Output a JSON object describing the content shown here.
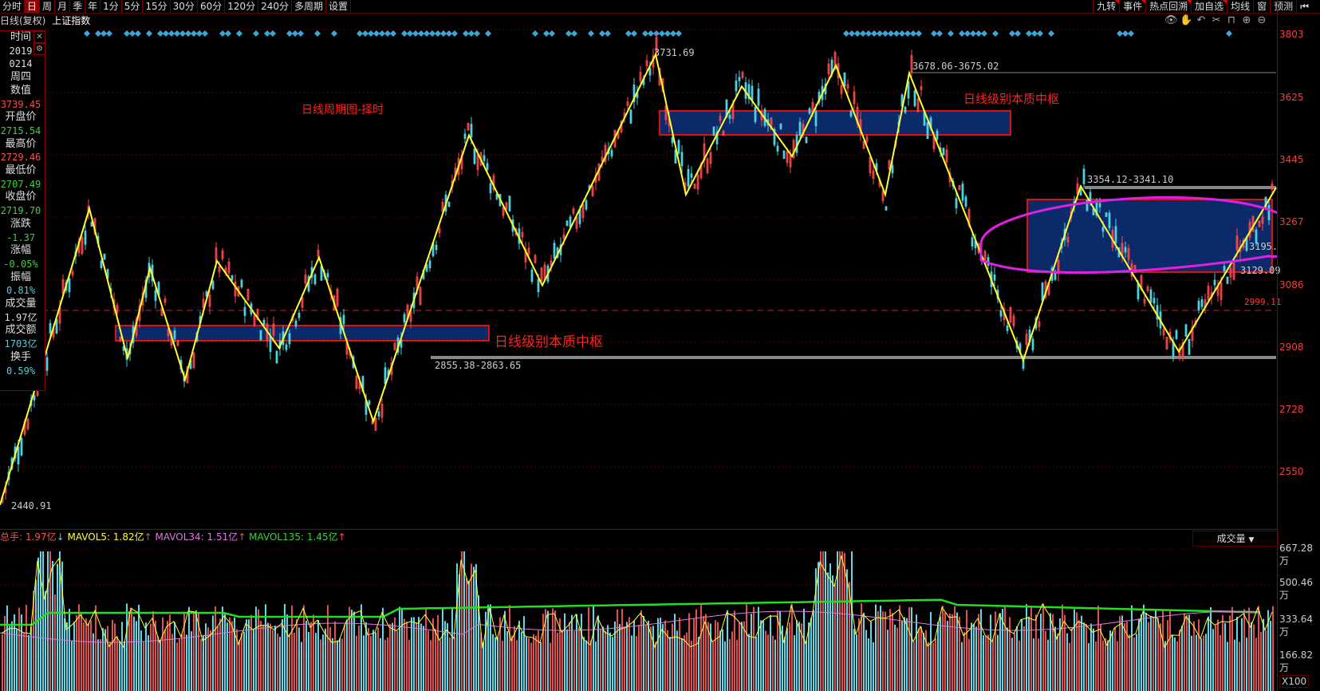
{
  "toolbar": {
    "period_tabs": [
      "分时",
      "日",
      "周",
      "月",
      "季",
      "年",
      "1分",
      "5分",
      "15分",
      "30分",
      "60分",
      "120分",
      "240分",
      "多周期",
      "设置"
    ],
    "active_tab": "日",
    "right_tools": [
      "九转",
      "事件",
      "热点回溯",
      "加自选",
      "均线",
      "窗",
      "预测"
    ],
    "collapse_icon": "collapse-right-icon"
  },
  "chart_header": {
    "mode": "日线(复权)",
    "index_name": "上证指数"
  },
  "chart_icons": [
    "eye-icon",
    "hand-icon",
    "undo-icon",
    "scissors-icon",
    "lock-icon",
    "zoom-in-icon",
    "zoom-out-icon"
  ],
  "info_panel": {
    "time_label": "时间",
    "year": "2019",
    "date": "0214",
    "weekday": "周四",
    "value_label": "数值",
    "value": "3739.45",
    "open_label": "开盘价",
    "open": "2715.54",
    "high_label": "最高价",
    "high": "2729.46",
    "low_label": "最低价",
    "low": "2707.49",
    "close_label": "收盘价",
    "close": "2719.70",
    "change_label": "涨跌",
    "change": "-1.37",
    "pct_label": "涨幅",
    "pct": "-0.05%",
    "amplitude_label": "振幅",
    "amplitude": "0.81%",
    "volume_label": "成交量",
    "volume": "1.97亿",
    "amount_label": "成交额",
    "amount": "1703亿",
    "turnover_label": "换手",
    "turnover": "0.59%"
  },
  "annotations": {
    "title": "日线周期图-择时",
    "zone1": "日线级别本质中枢",
    "zone2": "日线级别本质中枢",
    "high_label": "3731.69",
    "low_label": "2440.91",
    "range1": "3678.06-3675.02",
    "range2": "3354.12-3341.10",
    "range3": "2855.38-2863.65",
    "level1": "3195.",
    "level2": "3129.09",
    "dashed_level": "2999.11"
  },
  "volume_header": {
    "total": "总手: 1.97亿",
    "total_arrow": "↓",
    "mavol5": "MAVOL5: 1.82亿",
    "mavol5_arrow": "↑",
    "mavol34": "MAVOL34: 1.51亿",
    "mavol34_arrow": "↑",
    "mavol135": "MAVOL135: 1.45亿",
    "mavol135_arrow": "↑",
    "indicator_select": "成交量",
    "multiplier": "X100"
  },
  "chart_data": {
    "type": "candlestick",
    "title": "上证指数 日线(复权)",
    "price_axis_ticks": [
      3803,
      3625,
      3445,
      3267,
      3086,
      2908,
      2728,
      2550
    ],
    "volume_axis_ticks": [
      "667.28万",
      "500.46万",
      "333.64万",
      "166.82万"
    ],
    "zigzag_pivots": [
      2440.91,
      3290,
      2860,
      3120,
      2800,
      3140,
      2890,
      3150,
      2680,
      3500,
      3070,
      3731.69,
      3330,
      3640,
      3440,
      3700,
      3330,
      3678.06,
      2855,
      3354.12,
      2880,
      3350
    ],
    "zones": [
      {
        "label": "日线级别本质中枢",
        "low": 2870,
        "high": 2930
      },
      {
        "label": "日线级别本质中枢",
        "low": 3540,
        "high": 3600
      },
      {
        "low": 3100,
        "high": 3290
      }
    ],
    "colors": {
      "up": "#ff4a4a",
      "down": "#4fd0e0",
      "zigzag": "#ffff33",
      "zone_fill": "#0a2a6a",
      "zone_border": "#e01010",
      "ellipse": "#e020e0",
      "mavol5": "#ffff33",
      "mavol34": "#e07ae0",
      "mavol135": "#22dd22"
    }
  }
}
